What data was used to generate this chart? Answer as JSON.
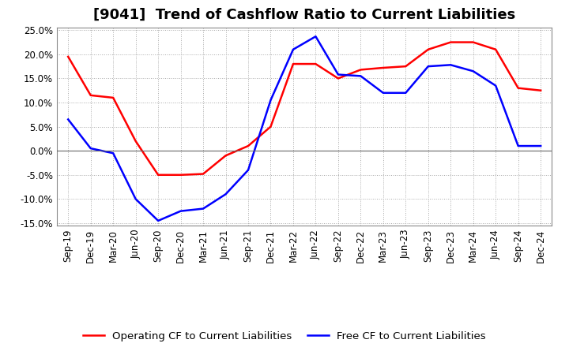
{
  "title": "[9041]  Trend of Cashflow Ratio to Current Liabilities",
  "x_labels": [
    "Sep-19",
    "Dec-19",
    "Mar-20",
    "Jun-20",
    "Sep-20",
    "Dec-20",
    "Mar-21",
    "Jun-21",
    "Sep-21",
    "Dec-21",
    "Mar-22",
    "Jun-22",
    "Sep-22",
    "Dec-22",
    "Mar-23",
    "Jun-23",
    "Sep-23",
    "Dec-23",
    "Mar-24",
    "Jun-24",
    "Sep-24",
    "Dec-24"
  ],
  "operating_cf": [
    0.195,
    0.115,
    0.11,
    0.02,
    -0.05,
    -0.05,
    -0.048,
    -0.01,
    0.01,
    0.05,
    0.18,
    0.18,
    0.15,
    0.168,
    0.172,
    0.175,
    0.21,
    0.225,
    0.225,
    0.21,
    0.13,
    0.125
  ],
  "free_cf": [
    0.065,
    0.005,
    -0.005,
    -0.1,
    -0.145,
    -0.125,
    -0.12,
    -0.09,
    -0.04,
    0.105,
    0.21,
    0.237,
    0.158,
    0.155,
    0.12,
    0.12,
    0.175,
    0.178,
    0.165,
    0.135,
    0.01,
    0.01
  ],
  "operating_color": "#ff0000",
  "free_color": "#0000ff",
  "ylim": [
    -0.155,
    0.255
  ],
  "yticks": [
    -0.15,
    -0.1,
    -0.05,
    0.0,
    0.05,
    0.1,
    0.15,
    0.2,
    0.25
  ],
  "legend_operating": "Operating CF to Current Liabilities",
  "legend_free": "Free CF to Current Liabilities",
  "bg_color": "#ffffff",
  "plot_bg_color": "#ffffff",
  "grid_color": "#aaaaaa",
  "title_fontsize": 13,
  "label_fontsize": 8.5,
  "legend_fontsize": 9.5,
  "line_width": 1.8
}
